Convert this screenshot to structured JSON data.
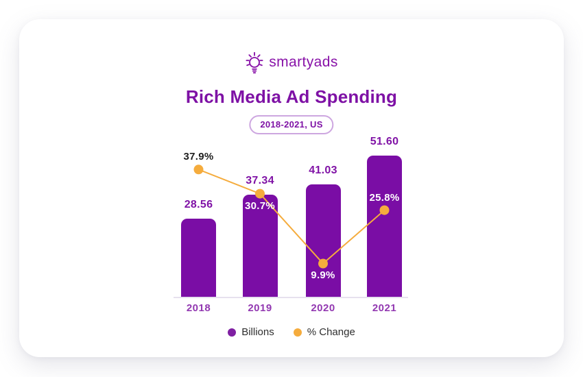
{
  "logo": {
    "text": "smartyads",
    "icon": "lightbulb-icon",
    "color": "#8812A8"
  },
  "header": {
    "title": "Rich Media Ad Spending",
    "badge": "2018-2021, US"
  },
  "chart_data": {
    "type": "bar+line combo",
    "title": "Rich Media Ad Spending",
    "subtitle": "2018-2021, US",
    "categories": [
      "2018",
      "2019",
      "2020",
      "2021"
    ],
    "series": [
      {
        "name": "Billions",
        "type": "bar",
        "color": "#7A0DA5",
        "values": [
          28.56,
          37.34,
          41.03,
          51.6
        ],
        "labels": [
          "28.56",
          "37.34",
          "41.03",
          "51.60"
        ],
        "label_color": "#8013A6"
      },
      {
        "name": "% Change",
        "type": "line",
        "color": "#F5AC3D",
        "values": [
          37.9,
          30.7,
          9.9,
          25.8
        ],
        "labels": [
          "37.9%",
          "30.7%",
          "9.9%",
          "25.8%"
        ],
        "label_sides": [
          "above",
          "below",
          "below",
          "above"
        ],
        "label_colors": [
          "#1E1E1E",
          "#FFFFFF",
          "#FFFFFF",
          "#FFFFFF"
        ]
      }
    ],
    "legend": [
      {
        "label": "Billions",
        "color": "#7F1FA2"
      },
      {
        "label": "% Change",
        "color": "#F5AC3D"
      }
    ],
    "axes": {
      "x_tick_color": "#9238B1",
      "baseline_color": "#E6E1EE",
      "y_axis_visible": false,
      "gridlines": false
    },
    "layout_hints": {
      "legend_position": "bottom",
      "value_labels": "above bars",
      "pct_labels": "at line points"
    }
  }
}
